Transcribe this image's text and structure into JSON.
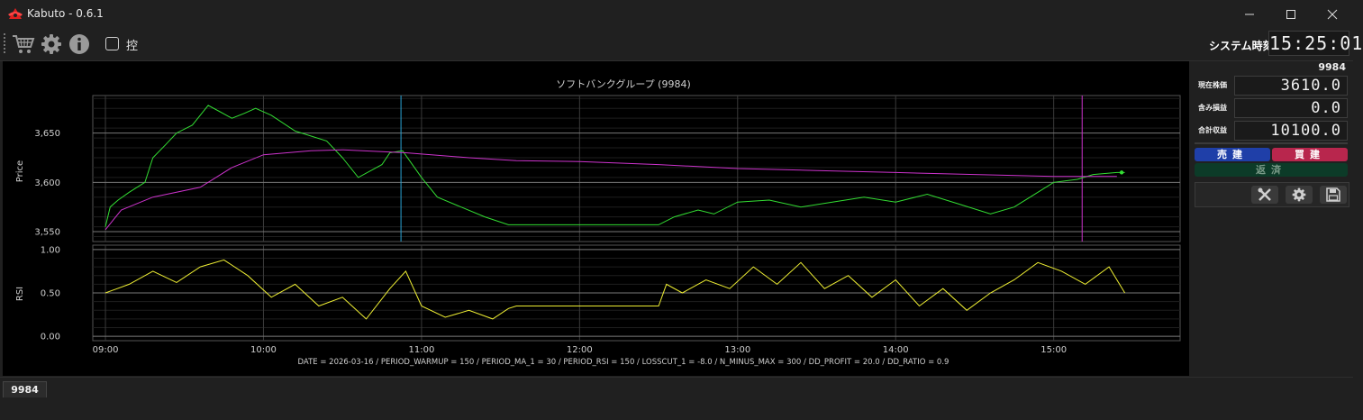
{
  "window": {
    "title": "Kabuto - 0.6.1"
  },
  "toolbar": {
    "icons": [
      "cart-icon",
      "gear-icon",
      "info-icon"
    ],
    "checkbox_label": "控",
    "checkbox_checked": false,
    "system_time_label": "システム時刻",
    "system_time": "15:25:01"
  },
  "chart_data": {
    "type": "line",
    "title": "ソフトバンクグループ (9984)",
    "footer": "DATE = 2026-03-16 / PERIOD_WARMUP = 150 / PERIOD_MA_1 = 30 / PERIOD_RSI = 150 / LOSSCUT_1 = -8.0 / N_MINUS_MAX = 300 / DD_PROFIT = 20.0 / DD_RATIO = 0.9",
    "x_ticks": [
      "09:00",
      "10:00",
      "11:00",
      "12:00",
      "13:00",
      "14:00",
      "15:00"
    ],
    "x_range": [
      8.92,
      15.8
    ],
    "price_panel": {
      "ylabel": "Price",
      "ylim": [
        3540,
        3688
      ],
      "yticks": [
        "3,550",
        "3,600",
        "3,650"
      ],
      "series": [
        {
          "color": "#33dd33",
          "x": [
            9.0,
            9.03,
            9.08,
            9.15,
            9.25,
            9.3,
            9.38,
            9.45,
            9.55,
            9.65,
            9.72,
            9.8,
            9.88,
            9.95,
            10.05,
            10.2,
            10.4,
            10.5,
            10.6,
            10.75,
            10.8,
            10.88,
            11.0,
            11.1,
            11.25,
            11.4,
            11.55,
            11.8,
            12.0,
            12.3,
            12.5,
            12.6,
            12.75,
            12.85,
            13.0,
            13.2,
            13.4,
            13.6,
            13.8,
            14.0,
            14.2,
            14.4,
            14.6,
            14.75,
            14.9,
            15.0,
            15.15,
            15.25,
            15.4,
            15.45
          ],
          "y": [
            3555,
            3575,
            3582,
            3590,
            3600,
            3625,
            3638,
            3650,
            3658,
            3678,
            3672,
            3665,
            3670,
            3675,
            3668,
            3652,
            3642,
            3625,
            3605,
            3618,
            3630,
            3632,
            3605,
            3585,
            3575,
            3565,
            3557,
            3557,
            3557,
            3557,
            3557,
            3565,
            3572,
            3568,
            3580,
            3582,
            3575,
            3580,
            3585,
            3580,
            3588,
            3578,
            3568,
            3575,
            3590,
            3600,
            3603,
            3608,
            3610,
            3610
          ]
        },
        {
          "color": "#cc33cc",
          "x": [
            9.0,
            9.1,
            9.3,
            9.6,
            9.8,
            10.0,
            10.3,
            10.5,
            10.9,
            11.3,
            11.6,
            12.0,
            12.5,
            13.0,
            13.5,
            14.0,
            14.5,
            15.0,
            15.4
          ],
          "y": [
            3552,
            3572,
            3585,
            3595,
            3615,
            3628,
            3632,
            3633,
            3630,
            3625,
            3622,
            3621,
            3618,
            3614,
            3612,
            3610,
            3608,
            3606,
            3606
          ]
        }
      ],
      "vlines": [
        {
          "x": 10.87,
          "color": "#2aa4d6"
        },
        {
          "x": 15.18,
          "color": "#cc33cc"
        }
      ],
      "last_point": {
        "x": 15.43,
        "y": 3610
      }
    },
    "rsi_panel": {
      "ylabel": "RSI",
      "ylim": [
        -0.05,
        1.05
      ],
      "yticks": [
        "0.00",
        "0.50",
        "1.00"
      ],
      "series": [
        {
          "color": "#eeee33",
          "x": [
            9.0,
            9.15,
            9.3,
            9.45,
            9.6,
            9.75,
            9.9,
            10.05,
            10.2,
            10.35,
            10.5,
            10.65,
            10.8,
            10.9,
            11.0,
            11.15,
            11.3,
            11.45,
            11.55,
            11.6,
            12.5,
            12.55,
            12.65,
            12.8,
            12.95,
            13.1,
            13.25,
            13.4,
            13.55,
            13.7,
            13.85,
            14.0,
            14.15,
            14.3,
            14.45,
            14.6,
            14.75,
            14.9,
            15.05,
            15.2,
            15.35,
            15.45
          ],
          "y": [
            0.5,
            0.6,
            0.75,
            0.62,
            0.8,
            0.88,
            0.7,
            0.45,
            0.6,
            0.35,
            0.45,
            0.2,
            0.55,
            0.75,
            0.35,
            0.22,
            0.3,
            0.2,
            0.32,
            0.35,
            0.35,
            0.6,
            0.5,
            0.65,
            0.55,
            0.8,
            0.6,
            0.85,
            0.55,
            0.7,
            0.45,
            0.65,
            0.35,
            0.55,
            0.3,
            0.5,
            0.65,
            0.85,
            0.75,
            0.6,
            0.8,
            0.5
          ]
        }
      ]
    }
  },
  "side_panel": {
    "code": "9984",
    "fields": [
      {
        "label": "現在株価",
        "value": "3610.0"
      },
      {
        "label": "含み損益",
        "value": "0.0"
      },
      {
        "label": "合計収益",
        "value": "10100.0"
      }
    ],
    "buttons": {
      "sell": {
        "label": "売建",
        "color": "#1f3fa8"
      },
      "buy": {
        "label": "買建",
        "color": "#b8264d"
      },
      "repay": {
        "label": "返済",
        "color": "#0c3b28"
      }
    },
    "tools": [
      "tools-icon",
      "gear-icon",
      "save-icon"
    ]
  },
  "tabs": [
    {
      "label": "9984"
    }
  ]
}
